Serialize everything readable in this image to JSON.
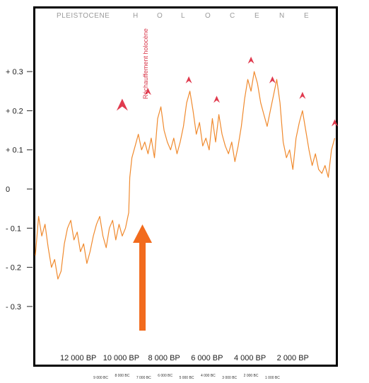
{
  "chart_data": {
    "type": "line",
    "era_labels": [
      "PLEISTOCENE",
      "H",
      "O",
      "L",
      "O",
      "C",
      "E",
      "N",
      "E"
    ],
    "annotation": "Réchauffement holocène",
    "y_ticks": [
      "+ 0.3",
      "+ 0.2",
      "+ 0.1",
      "0",
      "- 0.1",
      "- 0.2",
      "- 0.3"
    ],
    "y_values": [
      0.3,
      0.2,
      0.1,
      0,
      -0.1,
      -0.2,
      -0.3
    ],
    "ylim": [
      -0.42,
      0.44
    ],
    "xlim": [
      14000,
      0
    ],
    "x_ticks": [
      {
        "label": "12 000 BP",
        "value": 12000
      },
      {
        "label": "10 000 BP",
        "value": 10000
      },
      {
        "label": "8 000 BP",
        "value": 8000
      },
      {
        "label": "6 000 BP",
        "value": 6000
      },
      {
        "label": "4 000 BP",
        "value": 4000
      },
      {
        "label": "2 000 BP",
        "value": 2000
      }
    ],
    "bc_ticks": [
      {
        "label": "9 000 BC",
        "value": 10950
      },
      {
        "label": "8 000 BC",
        "value": 9950
      },
      {
        "label": "7 000 BC",
        "value": 8950
      },
      {
        "label": "6 000 BC",
        "value": 7950
      },
      {
        "label": "5 000 BC",
        "value": 6950
      },
      {
        "label": "4 000 BC",
        "value": 5950
      },
      {
        "label": "3 000 BC",
        "value": 4950
      },
      {
        "label": "2 000 BC",
        "value": 3950
      },
      {
        "label": "1 000 BC",
        "value": 2950
      }
    ],
    "series": [
      {
        "color": "#f08a2e",
        "x": [
          14000,
          13850,
          13700,
          13550,
          13400,
          13250,
          13100,
          12950,
          12800,
          12650,
          12500,
          12350,
          12200,
          12050,
          11900,
          11750,
          11600,
          11450,
          11300,
          11150,
          11000,
          10850,
          10700,
          10550,
          10400,
          10250,
          10100,
          9950,
          9800,
          9650,
          9600,
          9500,
          9350,
          9200,
          9050,
          8900,
          8750,
          8600,
          8450,
          8300,
          8150,
          8000,
          7850,
          7700,
          7550,
          7400,
          7250,
          7100,
          6950,
          6800,
          6650,
          6500,
          6350,
          6200,
          6050,
          5900,
          5750,
          5600,
          5450,
          5300,
          5150,
          5000,
          4850,
          4700,
          4550,
          4400,
          4250,
          4100,
          3950,
          3800,
          3650,
          3500,
          3350,
          3200,
          3050,
          2900,
          2750,
          2600,
          2450,
          2300,
          2150,
          2000,
          1850,
          1700,
          1550,
          1400,
          1250,
          1100,
          950,
          800,
          650,
          500,
          350,
          200,
          50
        ],
        "values": [
          -0.17,
          -0.07,
          -0.12,
          -0.09,
          -0.15,
          -0.2,
          -0.18,
          -0.23,
          -0.21,
          -0.14,
          -0.1,
          -0.08,
          -0.13,
          -0.11,
          -0.16,
          -0.14,
          -0.19,
          -0.16,
          -0.12,
          -0.09,
          -0.07,
          -0.12,
          -0.15,
          -0.1,
          -0.08,
          -0.13,
          -0.09,
          -0.12,
          -0.1,
          -0.06,
          0.03,
          0.08,
          0.11,
          0.14,
          0.1,
          0.12,
          0.09,
          0.13,
          0.08,
          0.18,
          0.21,
          0.15,
          0.12,
          0.1,
          0.13,
          0.09,
          0.12,
          0.16,
          0.22,
          0.25,
          0.2,
          0.14,
          0.17,
          0.11,
          0.13,
          0.1,
          0.18,
          0.12,
          0.19,
          0.14,
          0.11,
          0.09,
          0.12,
          0.07,
          0.11,
          0.16,
          0.23,
          0.28,
          0.25,
          0.3,
          0.27,
          0.22,
          0.19,
          0.16,
          0.2,
          0.24,
          0.28,
          0.22,
          0.12,
          0.08,
          0.1,
          0.05,
          0.13,
          0.17,
          0.2,
          0.15,
          0.1,
          0.06,
          0.09,
          0.05,
          0.04,
          0.06,
          0.03,
          0.1,
          0.13
        ]
      }
    ],
    "peaks": [
      {
        "x": 9950,
        "y": 0.2,
        "size": "large"
      },
      {
        "x": 8750,
        "y": 0.24,
        "size": "small"
      },
      {
        "x": 6850,
        "y": 0.27,
        "size": "small"
      },
      {
        "x": 5550,
        "y": 0.22,
        "size": "small"
      },
      {
        "x": 3950,
        "y": 0.32,
        "size": "small"
      },
      {
        "x": 2950,
        "y": 0.27,
        "size": "small"
      },
      {
        "x": 1550,
        "y": 0.23,
        "size": "small"
      },
      {
        "x": 50,
        "y": 0.16,
        "size": "small"
      }
    ],
    "arrow_color": "#f26b1d",
    "peak_color": "#e03a4e"
  }
}
